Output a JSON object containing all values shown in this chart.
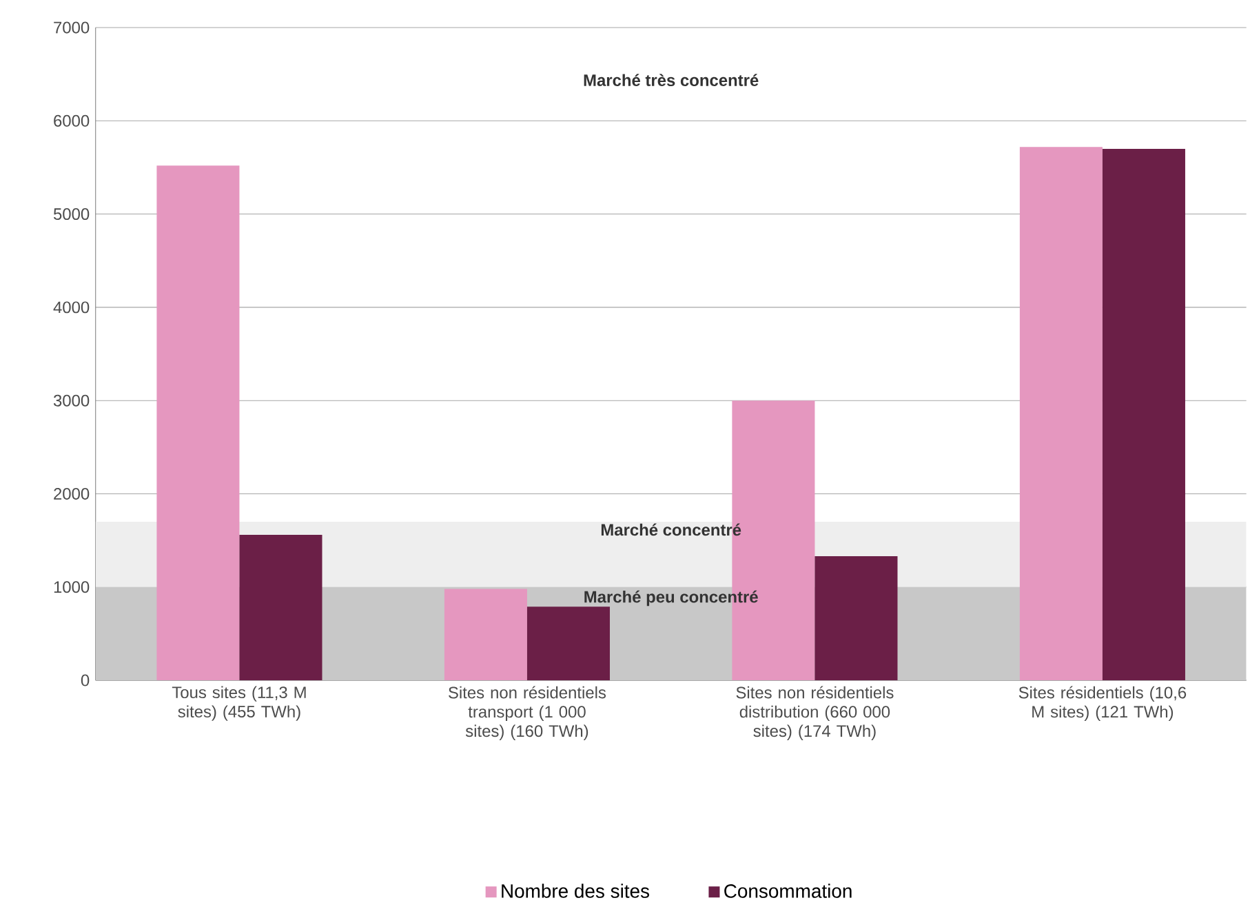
{
  "chart_data": {
    "type": "bar",
    "categories": [
      "Tous sites (11,3 M sites) (455 TWh)",
      "Sites non résidentiels transport (1 000 sites) (160 TWh)",
      "Sites non résidentiels distribution (660 000 sites) (174 TWh)",
      "Sites résidentiels (10,6 M sites) (121 TWh)"
    ],
    "series": [
      {
        "name": "Nombre des sites",
        "color": "#e597bf",
        "values": [
          5520,
          980,
          3000,
          5720
        ]
      },
      {
        "name": "Consommation",
        "color": "#6b1f47",
        "values": [
          1560,
          790,
          1330,
          5700
        ]
      }
    ],
    "ylim": [
      0,
      7000
    ],
    "yticks": [
      0,
      1000,
      2000,
      3000,
      4000,
      5000,
      6000,
      7000
    ],
    "bands": [
      {
        "axis": "y",
        "from": 0,
        "to": 1000,
        "label": "Marché peu concentré",
        "color": "#c8c8c8"
      },
      {
        "axis": "y",
        "from": 1000,
        "to": 1700,
        "label": "Marché concentré",
        "color": "#eeeeee"
      }
    ],
    "annotations": [
      "Marché très concentré"
    ],
    "grid": "y",
    "legend": "bottom"
  }
}
